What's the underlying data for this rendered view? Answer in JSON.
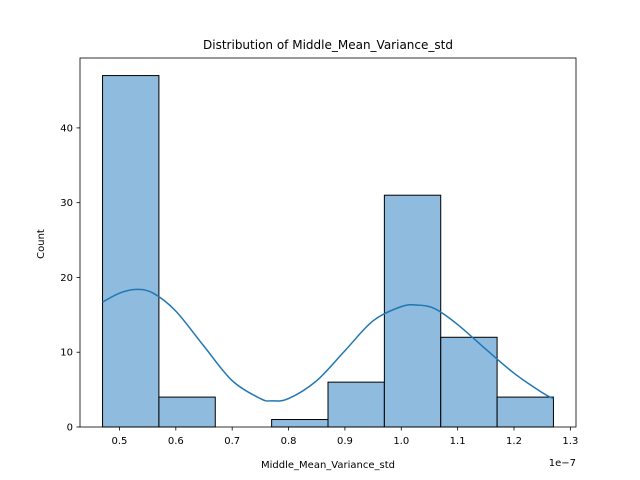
{
  "chart_data": {
    "type": "bar",
    "title": "Distribution of Middle_Mean_Variance_std",
    "xlabel": "Middle_Mean_Variance_std",
    "ylabel": "Count",
    "x_offset_label": "1e−7",
    "xlim": [
      0.43,
      1.31
    ],
    "ylim": [
      0,
      49.35
    ],
    "x_ticks": [
      0.5,
      0.6,
      0.7,
      0.8,
      0.9,
      1.0,
      1.1,
      1.2,
      1.3
    ],
    "x_tick_labels": [
      "0.5",
      "0.6",
      "0.7",
      "0.8",
      "0.9",
      "1.0",
      "1.1",
      "1.2",
      "1.3"
    ],
    "y_ticks": [
      0,
      10,
      20,
      30,
      40
    ],
    "y_tick_labels": [
      "0",
      "10",
      "20",
      "30",
      "40"
    ],
    "bins": [
      {
        "x0": 0.47,
        "x1": 0.57,
        "count": 47
      },
      {
        "x0": 0.57,
        "x1": 0.67,
        "count": 4
      },
      {
        "x0": 0.67,
        "x1": 0.77,
        "count": 0
      },
      {
        "x0": 0.77,
        "x1": 0.87,
        "count": 1
      },
      {
        "x0": 0.87,
        "x1": 0.97,
        "count": 6
      },
      {
        "x0": 0.97,
        "x1": 1.07,
        "count": 31
      },
      {
        "x0": 1.07,
        "x1": 1.17,
        "count": 12
      },
      {
        "x0": 1.17,
        "x1": 1.27,
        "count": 4
      }
    ],
    "kde": {
      "x": [
        0.47,
        0.5,
        0.53,
        0.56,
        0.6,
        0.65,
        0.7,
        0.75,
        0.77,
        0.8,
        0.85,
        0.9,
        0.95,
        1.0,
        1.03,
        1.06,
        1.1,
        1.15,
        1.2,
        1.25,
        1.27
      ],
      "y": [
        16.7,
        17.9,
        18.4,
        17.9,
        15.5,
        10.8,
        6.2,
        3.8,
        3.5,
        3.8,
        6.2,
        10.2,
        14.2,
        16.1,
        16.3,
        15.8,
        13.7,
        10.4,
        7.2,
        4.6,
        3.8
      ]
    },
    "bar_color": "#7eb2d9",
    "line_color": "#1f77b4",
    "grid": false,
    "legend": "none"
  }
}
